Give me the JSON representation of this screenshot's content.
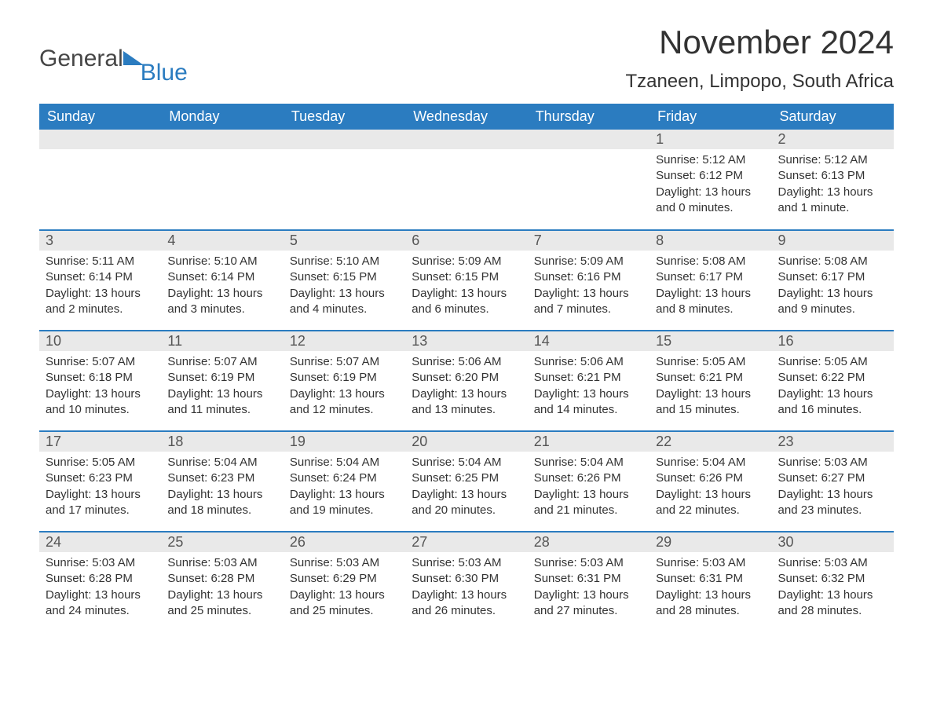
{
  "brand": {
    "main": "General",
    "sub": "Blue"
  },
  "title": "November 2024",
  "location": "Tzaneen, Limpopo, South Africa",
  "colors": {
    "accent": "#2b7cc0",
    "header_text": "#ffffff",
    "daynum_bg": "#e9e9e9",
    "daynum_text": "#555555",
    "body_text": "#333333",
    "page_bg": "#ffffff"
  },
  "typography": {
    "title_fontsize": 42,
    "location_fontsize": 24,
    "header_fontsize": 18,
    "daynum_fontsize": 18,
    "body_fontsize": 15,
    "font_family": "Segoe UI, Arial, sans-serif"
  },
  "calendar": {
    "type": "table",
    "columns": [
      "Sunday",
      "Monday",
      "Tuesday",
      "Wednesday",
      "Thursday",
      "Friday",
      "Saturday"
    ],
    "leading_blanks": 5,
    "days": [
      {
        "n": 1,
        "sunrise": "5:12 AM",
        "sunset": "6:12 PM",
        "daylight": "13 hours and 0 minutes."
      },
      {
        "n": 2,
        "sunrise": "5:12 AM",
        "sunset": "6:13 PM",
        "daylight": "13 hours and 1 minute."
      },
      {
        "n": 3,
        "sunrise": "5:11 AM",
        "sunset": "6:14 PM",
        "daylight": "13 hours and 2 minutes."
      },
      {
        "n": 4,
        "sunrise": "5:10 AM",
        "sunset": "6:14 PM",
        "daylight": "13 hours and 3 minutes."
      },
      {
        "n": 5,
        "sunrise": "5:10 AM",
        "sunset": "6:15 PM",
        "daylight": "13 hours and 4 minutes."
      },
      {
        "n": 6,
        "sunrise": "5:09 AM",
        "sunset": "6:15 PM",
        "daylight": "13 hours and 6 minutes."
      },
      {
        "n": 7,
        "sunrise": "5:09 AM",
        "sunset": "6:16 PM",
        "daylight": "13 hours and 7 minutes."
      },
      {
        "n": 8,
        "sunrise": "5:08 AM",
        "sunset": "6:17 PM",
        "daylight": "13 hours and 8 minutes."
      },
      {
        "n": 9,
        "sunrise": "5:08 AM",
        "sunset": "6:17 PM",
        "daylight": "13 hours and 9 minutes."
      },
      {
        "n": 10,
        "sunrise": "5:07 AM",
        "sunset": "6:18 PM",
        "daylight": "13 hours and 10 minutes."
      },
      {
        "n": 11,
        "sunrise": "5:07 AM",
        "sunset": "6:19 PM",
        "daylight": "13 hours and 11 minutes."
      },
      {
        "n": 12,
        "sunrise": "5:07 AM",
        "sunset": "6:19 PM",
        "daylight": "13 hours and 12 minutes."
      },
      {
        "n": 13,
        "sunrise": "5:06 AM",
        "sunset": "6:20 PM",
        "daylight": "13 hours and 13 minutes."
      },
      {
        "n": 14,
        "sunrise": "5:06 AM",
        "sunset": "6:21 PM",
        "daylight": "13 hours and 14 minutes."
      },
      {
        "n": 15,
        "sunrise": "5:05 AM",
        "sunset": "6:21 PM",
        "daylight": "13 hours and 15 minutes."
      },
      {
        "n": 16,
        "sunrise": "5:05 AM",
        "sunset": "6:22 PM",
        "daylight": "13 hours and 16 minutes."
      },
      {
        "n": 17,
        "sunrise": "5:05 AM",
        "sunset": "6:23 PM",
        "daylight": "13 hours and 17 minutes."
      },
      {
        "n": 18,
        "sunrise": "5:04 AM",
        "sunset": "6:23 PM",
        "daylight": "13 hours and 18 minutes."
      },
      {
        "n": 19,
        "sunrise": "5:04 AM",
        "sunset": "6:24 PM",
        "daylight": "13 hours and 19 minutes."
      },
      {
        "n": 20,
        "sunrise": "5:04 AM",
        "sunset": "6:25 PM",
        "daylight": "13 hours and 20 minutes."
      },
      {
        "n": 21,
        "sunrise": "5:04 AM",
        "sunset": "6:26 PM",
        "daylight": "13 hours and 21 minutes."
      },
      {
        "n": 22,
        "sunrise": "5:04 AM",
        "sunset": "6:26 PM",
        "daylight": "13 hours and 22 minutes."
      },
      {
        "n": 23,
        "sunrise": "5:03 AM",
        "sunset": "6:27 PM",
        "daylight": "13 hours and 23 minutes."
      },
      {
        "n": 24,
        "sunrise": "5:03 AM",
        "sunset": "6:28 PM",
        "daylight": "13 hours and 24 minutes."
      },
      {
        "n": 25,
        "sunrise": "5:03 AM",
        "sunset": "6:28 PM",
        "daylight": "13 hours and 25 minutes."
      },
      {
        "n": 26,
        "sunrise": "5:03 AM",
        "sunset": "6:29 PM",
        "daylight": "13 hours and 25 minutes."
      },
      {
        "n": 27,
        "sunrise": "5:03 AM",
        "sunset": "6:30 PM",
        "daylight": "13 hours and 26 minutes."
      },
      {
        "n": 28,
        "sunrise": "5:03 AM",
        "sunset": "6:31 PM",
        "daylight": "13 hours and 27 minutes."
      },
      {
        "n": 29,
        "sunrise": "5:03 AM",
        "sunset": "6:31 PM",
        "daylight": "13 hours and 28 minutes."
      },
      {
        "n": 30,
        "sunrise": "5:03 AM",
        "sunset": "6:32 PM",
        "daylight": "13 hours and 28 minutes."
      }
    ],
    "labels": {
      "sunrise": "Sunrise: ",
      "sunset": "Sunset: ",
      "daylight": "Daylight: "
    }
  }
}
